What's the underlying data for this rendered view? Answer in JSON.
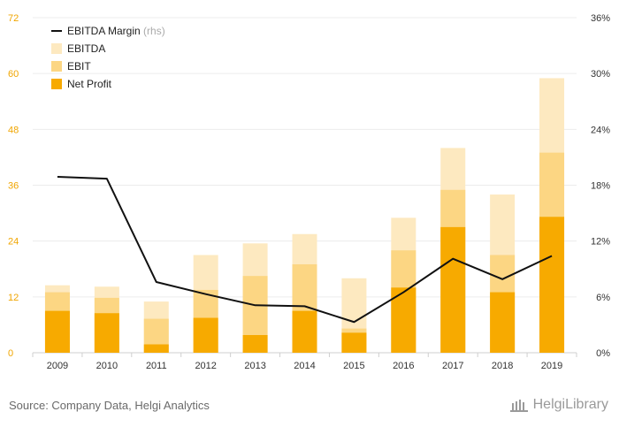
{
  "chart_data": {
    "type": "bar",
    "stacked": true,
    "categories": [
      "2009",
      "2010",
      "2011",
      "2012",
      "2013",
      "2014",
      "2015",
      "2016",
      "2017",
      "2018",
      "2019"
    ],
    "left_axis": {
      "min": 0,
      "max": 72,
      "ticks": [
        "0",
        "12",
        "24",
        "36",
        "48",
        "60",
        "72"
      ]
    },
    "right_axis": {
      "min": 0,
      "max": 36,
      "ticks": [
        "0%",
        "6%",
        "12%",
        "18%",
        "24%",
        "30%",
        "36%"
      ]
    },
    "series": [
      {
        "name": "Net Profit",
        "type": "bar",
        "color": "#f7aa00",
        "values": [
          9.0,
          8.5,
          1.8,
          7.5,
          3.8,
          9.0,
          4.3,
          14.0,
          27.0,
          13.0,
          29.2
        ]
      },
      {
        "name": "EBIT",
        "type": "bar",
        "color": "#fcd683",
        "values": [
          13.0,
          11.8,
          7.3,
          13.5,
          16.5,
          19.0,
          5.2,
          22.0,
          35.0,
          21.0,
          43.0
        ]
      },
      {
        "name": "EBITDA",
        "type": "bar",
        "color": "#fde9c0",
        "values": [
          14.5,
          14.2,
          11.0,
          21.0,
          23.5,
          25.5,
          16.0,
          29.0,
          44.0,
          34.0,
          59.0
        ]
      },
      {
        "name": "EBITDA Margin",
        "suffix": "(rhs)",
        "type": "line",
        "color": "#111111",
        "axis": "right",
        "values": [
          18.9,
          18.7,
          7.6,
          6.3,
          5.1,
          5.0,
          3.3,
          6.5,
          10.1,
          7.9,
          10.4
        ]
      }
    ],
    "legend_order": [
      "EBITDA Margin",
      "EBITDA",
      "EBIT",
      "Net Profit"
    ],
    "legend_position": "top-left",
    "grid": true
  },
  "footer": {
    "source": "Source: Company Data, Helgi Analytics",
    "brand": "HelgiLibrary"
  }
}
